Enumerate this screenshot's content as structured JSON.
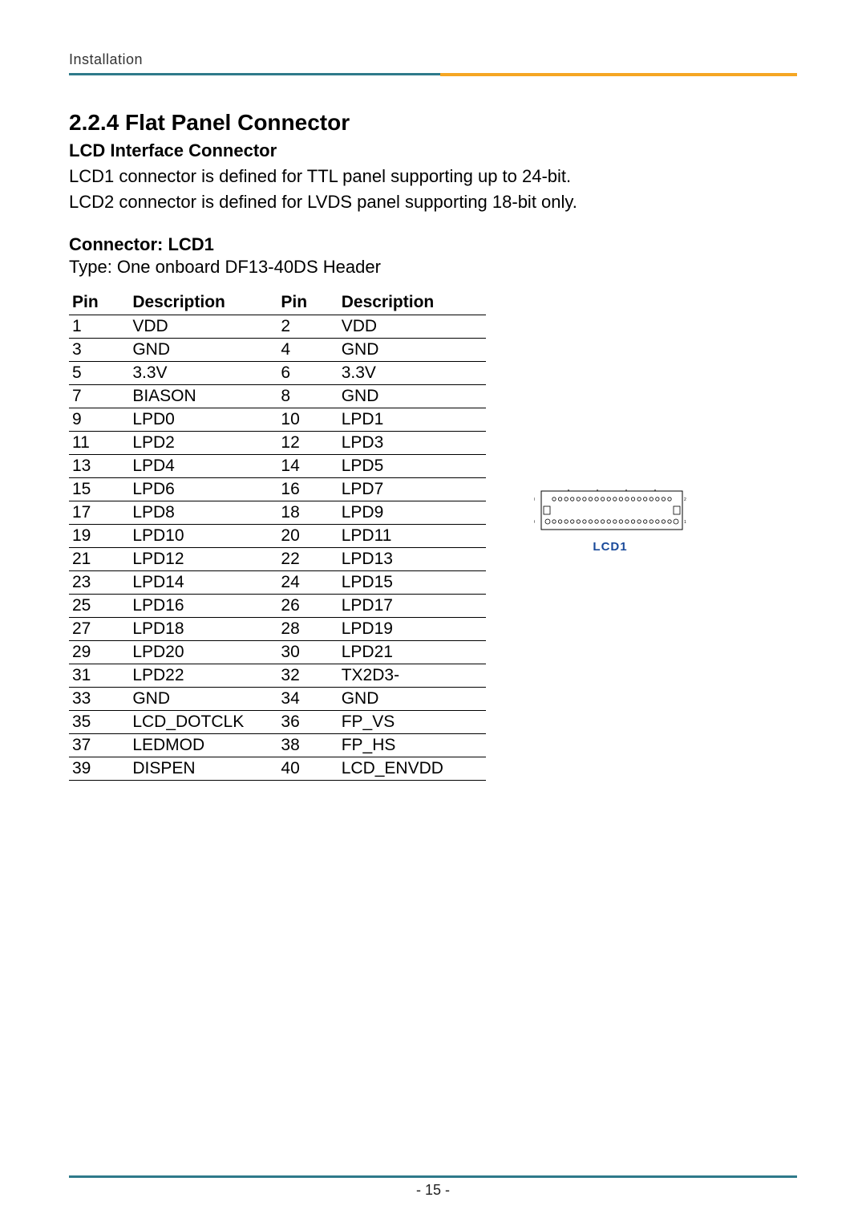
{
  "header": {
    "section": "Installation",
    "rule_colors": {
      "left": "#2e7a8a",
      "right": "#f5a623"
    }
  },
  "section": {
    "number_title": "2.2.4 Flat Panel Connector",
    "subtitle": "LCD Interface Connector",
    "paragraph1": "LCD1 connector is defined for TTL panel supporting up to 24-bit.",
    "paragraph2": "LCD2 connector is defined for LVDS panel supporting 18-bit only."
  },
  "connector": {
    "label": "Connector: LCD1",
    "type_text": "Type: One onboard DF13-40DS Header"
  },
  "table": {
    "headers": {
      "pin1": "Pin",
      "desc1": "Description",
      "pin2": "Pin",
      "desc2": "Description"
    },
    "rows": [
      {
        "p1": "1",
        "d1": "VDD",
        "p2": "2",
        "d2": "VDD"
      },
      {
        "p1": "3",
        "d1": "GND",
        "p2": "4",
        "d2": "GND"
      },
      {
        "p1": "5",
        "d1": "3.3V",
        "p2": "6",
        "d2": "3.3V"
      },
      {
        "p1": "7",
        "d1": "BIASON",
        "p2": "8",
        "d2": "GND"
      },
      {
        "p1": "9",
        "d1": "LPD0",
        "p2": "10",
        "d2": "LPD1"
      },
      {
        "p1": "11",
        "d1": "LPD2",
        "p2": "12",
        "d2": "LPD3"
      },
      {
        "p1": "13",
        "d1": "LPD4",
        "p2": "14",
        "d2": "LPD5"
      },
      {
        "p1": "15",
        "d1": "LPD6",
        "p2": "16",
        "d2": "LPD7"
      },
      {
        "p1": "17",
        "d1": "LPD8",
        "p2": "18",
        "d2": "LPD9"
      },
      {
        "p1": "19",
        "d1": "LPD10",
        "p2": "20",
        "d2": "LPD11"
      },
      {
        "p1": "21",
        "d1": "LPD12",
        "p2": "22",
        "d2": "LPD13"
      },
      {
        "p1": "23",
        "d1": "LPD14",
        "p2": "24",
        "d2": "LPD15"
      },
      {
        "p1": "25",
        "d1": "LPD16",
        "p2": "26",
        "d2": "LPD17"
      },
      {
        "p1": "27",
        "d1": "LPD18",
        "p2": "28",
        "d2": "LPD19"
      },
      {
        "p1": "29",
        "d1": "LPD20",
        "p2": "30",
        "d2": "LPD21"
      },
      {
        "p1": "31",
        "d1": "LPD22",
        "p2": "32",
        "d2": "TX2D3-"
      },
      {
        "p1": "33",
        "d1": "GND",
        "p2": "34",
        "d2": "GND"
      },
      {
        "p1": "35",
        "d1": "LCD_DOTCLK",
        "p2": "36",
        "d2": "FP_VS"
      },
      {
        "p1": "37",
        "d1": "LEDMOD",
        "p2": "38",
        "d2": "FP_HS"
      },
      {
        "p1": "39",
        "d1": "DISPEN",
        "p2": "40",
        "d2": "LCD_ENVDD"
      }
    ]
  },
  "diagram": {
    "label": "LCD1",
    "corner_labels": {
      "top_left": "40",
      "top_right": "2",
      "bottom_left": "39",
      "bottom_right": "1"
    },
    "pins_per_row": 20,
    "outline_color": "#000000",
    "label_color": "#1a4a9a"
  },
  "footer": {
    "page_number": "- 15 -",
    "rule_color": "#2e7a8a"
  }
}
